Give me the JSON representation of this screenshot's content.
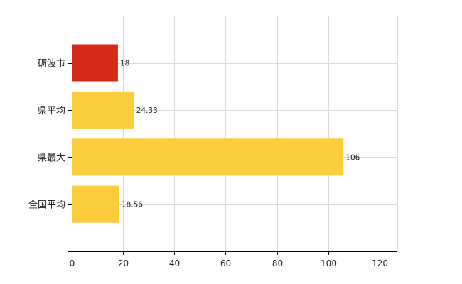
{
  "chart_data": {
    "type": "bar",
    "orientation": "horizontal",
    "categories": [
      "砺波市",
      "県平均",
      "県最大",
      "全国平均"
    ],
    "values": [
      18,
      24.33,
      106,
      18.56
    ],
    "value_labels": [
      "18",
      "24.33",
      "106",
      "18.56"
    ],
    "bar_colors": [
      "#d42a17",
      "#fbcc3e",
      "#fbcc3e",
      "#fbcc3e"
    ],
    "xlim": [
      0,
      127
    ],
    "x_ticks": [
      0,
      20,
      40,
      60,
      80,
      100,
      120
    ],
    "grid": true,
    "legend": "none",
    "title": "",
    "xlabel": "",
    "ylabel": ""
  },
  "colors": {
    "highlight": "#d42a17",
    "default": "#fbcc3e",
    "grid": "#d9d9d9",
    "axis": "#000000"
  }
}
